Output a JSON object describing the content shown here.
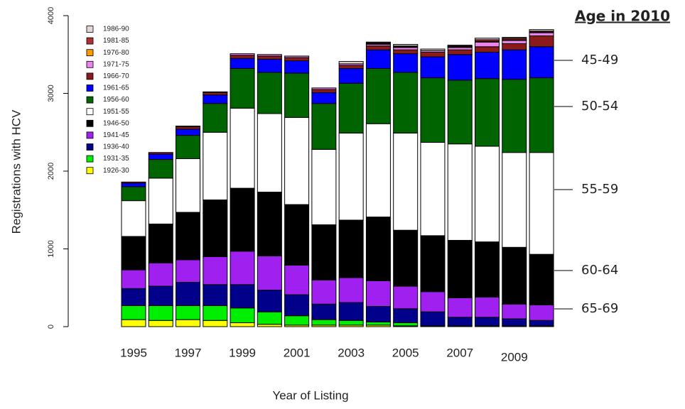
{
  "chart_data": {
    "type": "stacked-bar",
    "title": "Age in 2010",
    "x_label": "Year of Listing",
    "y_label": "Registrations with HCV",
    "categories": [
      "1995",
      null,
      "1997",
      null,
      "1999",
      null,
      "2001",
      null,
      "2003",
      null,
      "2005",
      null,
      "2007",
      null,
      "2009",
      null
    ],
    "ylim": [
      0,
      4000
    ],
    "yticks": [
      0,
      1000,
      2000,
      3000,
      4000
    ],
    "annotations": [
      "45-49",
      "50-54",
      "55-59",
      "60-64",
      "65-69"
    ],
    "series": [
      {
        "name": "1926-30",
        "color": "#ffff00",
        "values": [
          90,
          80,
          90,
          80,
          50,
          30,
          20,
          20,
          20,
          20,
          10,
          0,
          0,
          0,
          0,
          0
        ]
      },
      {
        "name": "1931-35",
        "color": "#00ee00",
        "values": [
          180,
          190,
          180,
          190,
          190,
          160,
          120,
          70,
          60,
          40,
          40,
          10,
          10,
          10,
          10,
          10
        ]
      },
      {
        "name": "1936-40",
        "color": "#00008b",
        "values": [
          220,
          250,
          300,
          270,
          300,
          280,
          270,
          200,
          230,
          200,
          180,
          180,
          110,
          110,
          90,
          70
        ]
      },
      {
        "name": "1941-45",
        "color": "#a020f0",
        "values": [
          240,
          300,
          290,
          360,
          430,
          440,
          380,
          310,
          320,
          330,
          290,
          260,
          250,
          260,
          190,
          200
        ]
      },
      {
        "name": "1946-50",
        "color": "#000000",
        "values": [
          430,
          500,
          610,
          730,
          810,
          820,
          780,
          710,
          740,
          820,
          720,
          720,
          740,
          710,
          730,
          650
        ]
      },
      {
        "name": "1951-55",
        "color": "#ffffff",
        "values": [
          460,
          590,
          690,
          870,
          1030,
          1010,
          1120,
          970,
          1120,
          1200,
          1250,
          1200,
          1240,
          1230,
          1220,
          1310
        ]
      },
      {
        "name": "1956-60",
        "color": "#006400",
        "values": [
          180,
          240,
          300,
          370,
          510,
          530,
          570,
          590,
          640,
          710,
          780,
          830,
          820,
          870,
          940,
          960
        ]
      },
      {
        "name": "1961-65",
        "color": "#0000ff",
        "values": [
          45,
          70,
          80,
          110,
          130,
          170,
          160,
          140,
          190,
          240,
          240,
          270,
          330,
          340,
          380,
          400
        ]
      },
      {
        "name": "1966-70",
        "color": "#8b1a1a",
        "values": [
          15,
          20,
          30,
          30,
          40,
          40,
          40,
          40,
          40,
          50,
          50,
          60,
          60,
          70,
          80,
          140
        ]
      },
      {
        "name": "1971-75",
        "color": "#ee82ee",
        "values": [
          0,
          0,
          10,
          10,
          20,
          20,
          20,
          20,
          20,
          20,
          30,
          20,
          30,
          60,
          40,
          40
        ]
      },
      {
        "name": "1976-80",
        "color": "#ff9900",
        "values": [
          0,
          0,
          0,
          0,
          0,
          0,
          0,
          0,
          0,
          10,
          10,
          0,
          10,
          10,
          10,
          10
        ]
      },
      {
        "name": "1981-85",
        "color": "#b03030",
        "values": [
          0,
          0,
          0,
          0,
          0,
          0,
          0,
          0,
          0,
          10,
          10,
          0,
          10,
          20,
          20,
          10
        ]
      },
      {
        "name": "1986-90",
        "color": "#e6d6d6",
        "values": [
          0,
          0,
          0,
          0,
          0,
          0,
          0,
          0,
          30,
          10,
          20,
          20,
          10,
          20,
          10,
          20
        ]
      }
    ]
  }
}
